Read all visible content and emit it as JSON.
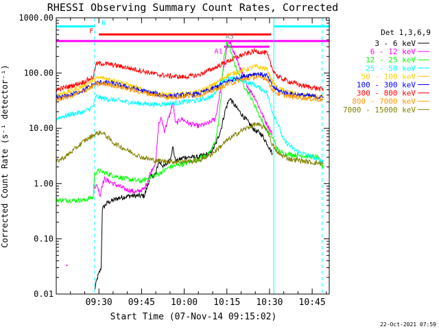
{
  "chart_data": {
    "type": "line",
    "title": "RHESSI Observing Summary Count Rates, Corrected",
    "xlabel": "Start Time (07-Nov-14 09:15:02)",
    "ylabel": "Corrected Count Rate (s⁻¹ detector⁻¹)",
    "x_unit": "minutes after 09:15",
    "xlim": [
      0,
      96
    ],
    "ylim": [
      0.01,
      1000
    ],
    "yscale": "log",
    "x_ticks": [
      {
        "value": 15,
        "label": "09:30"
      },
      {
        "value": 30,
        "label": "09:45"
      },
      {
        "value": 45,
        "label": "10:00"
      },
      {
        "value": 60,
        "label": "10:15"
      },
      {
        "value": 75,
        "label": "10:30"
      },
      {
        "value": 90,
        "label": "10:45"
      }
    ],
    "y_ticks": [
      {
        "value": 1000,
        "label": "1000.00"
      },
      {
        "value": 100,
        "label": "100.00"
      },
      {
        "value": 10,
        "label": "10.00"
      },
      {
        "value": 1,
        "label": "1.00"
      },
      {
        "value": 0.1,
        "label": "0.10"
      },
      {
        "value": 0.01,
        "label": "0.01"
      }
    ],
    "legend_title": "Det 1,3,6,9",
    "series": [
      {
        "name": "3 - 6 keV",
        "color": "#000000",
        "points": [
          [
            13.5,
            0.012
          ],
          [
            14.5,
            0.02
          ],
          [
            15.8,
            0.03
          ],
          [
            16.2,
            0.35
          ],
          [
            18,
            0.45
          ],
          [
            22,
            0.55
          ],
          [
            26,
            0.6
          ],
          [
            31,
            0.6
          ],
          [
            33,
            1.3
          ],
          [
            35,
            1.5
          ],
          [
            36,
            2.5
          ],
          [
            38,
            2.0
          ],
          [
            40,
            2.8
          ],
          [
            41,
            4.5
          ],
          [
            42,
            2.5
          ],
          [
            45,
            3
          ],
          [
            50,
            3
          ],
          [
            54,
            3.5
          ],
          [
            56,
            5
          ],
          [
            58,
            10
          ],
          [
            59.5,
            22
          ],
          [
            61,
            35
          ],
          [
            63,
            25
          ],
          [
            66,
            16
          ],
          [
            68,
            12
          ],
          [
            70,
            9
          ],
          [
            72,
            8
          ],
          [
            74,
            5.5
          ],
          [
            76,
            3.5
          ]
        ]
      },
      {
        "name": "6 - 12 keV",
        "color": "#ff00ff",
        "points": [
          [
            13,
            0.9
          ],
          [
            14.5,
            0.9
          ],
          [
            15.5,
            0.6
          ],
          [
            16,
            0.9
          ],
          [
            17,
            1.2
          ],
          [
            20,
            1.0
          ],
          [
            24,
            0.8
          ],
          [
            28,
            0.7
          ],
          [
            31,
            0.8
          ],
          [
            33,
            1.5
          ],
          [
            35,
            2.5
          ],
          [
            36,
            12
          ],
          [
            37,
            15
          ],
          [
            38,
            9
          ],
          [
            40,
            18
          ],
          [
            41,
            30
          ],
          [
            42,
            12
          ],
          [
            44,
            15
          ],
          [
            47,
            12
          ],
          [
            50,
            11
          ],
          [
            53,
            12
          ],
          [
            56,
            15
          ],
          [
            58,
            60
          ],
          [
            60,
            300
          ],
          [
            61,
            350
          ],
          [
            62,
            280
          ],
          [
            64,
            150
          ],
          [
            66,
            80
          ],
          [
            68,
            50
          ],
          [
            70,
            35
          ],
          [
            72,
            20
          ],
          [
            74,
            12
          ],
          [
            76,
            8
          ]
        ]
      },
      {
        "name": "12 - 25 keV",
        "color": "#00ff00",
        "points": [
          [
            0,
            0.5
          ],
          [
            10,
            0.5
          ],
          [
            12,
            0.55
          ],
          [
            13,
            0.55
          ],
          [
            13.5,
            1.5
          ],
          [
            15,
            1.7
          ],
          [
            20,
            1.4
          ],
          [
            25,
            1.2
          ],
          [
            30,
            1.1
          ],
          [
            33,
            1.3
          ],
          [
            36,
            1.5
          ],
          [
            40,
            2
          ],
          [
            45,
            2.3
          ],
          [
            50,
            2.8
          ],
          [
            54,
            3.5
          ],
          [
            56,
            6
          ],
          [
            57,
            12
          ],
          [
            58,
            40
          ],
          [
            59,
            200
          ],
          [
            60,
            350
          ],
          [
            61,
            300
          ],
          [
            62,
            180
          ],
          [
            64,
            100
          ],
          [
            66,
            60
          ],
          [
            68,
            40
          ],
          [
            70,
            25
          ],
          [
            72,
            15
          ],
          [
            74,
            9
          ],
          [
            76,
            7
          ],
          [
            78,
            4
          ],
          [
            80,
            3.5
          ],
          [
            86,
            3.2
          ],
          [
            92,
            3.0
          ],
          [
            93,
            2.2
          ],
          [
            94,
            2.0
          ]
        ]
      },
      {
        "name": "25 - 50 keV",
        "color": "#00ffff",
        "points": [
          [
            0,
            15
          ],
          [
            5,
            18
          ],
          [
            10,
            20
          ],
          [
            13,
            25
          ],
          [
            14,
            38
          ],
          [
            16,
            35
          ],
          [
            20,
            33
          ],
          [
            25,
            30
          ],
          [
            30,
            28
          ],
          [
            35,
            27
          ],
          [
            40,
            28
          ],
          [
            45,
            30
          ],
          [
            50,
            32
          ],
          [
            55,
            38
          ],
          [
            58,
            70
          ],
          [
            60,
            80
          ],
          [
            65,
            75
          ],
          [
            70,
            60
          ],
          [
            74,
            45
          ],
          [
            76,
            20
          ],
          [
            78,
            12
          ],
          [
            80,
            6
          ],
          [
            84,
            4
          ],
          [
            90,
            3
          ],
          [
            94,
            2.5
          ]
        ]
      },
      {
        "name": "50 - 100 keV",
        "color": "#ffcc00",
        "points": [
          [
            0,
            40
          ],
          [
            5,
            47
          ],
          [
            10,
            60
          ],
          [
            14,
            80
          ],
          [
            16,
            82
          ],
          [
            20,
            75
          ],
          [
            25,
            62
          ],
          [
            30,
            50
          ],
          [
            35,
            42
          ],
          [
            40,
            40
          ],
          [
            45,
            42
          ],
          [
            50,
            45
          ],
          [
            55,
            60
          ],
          [
            60,
            90
          ],
          [
            65,
            110
          ],
          [
            70,
            130
          ],
          [
            74,
            120
          ],
          [
            76,
            70
          ],
          [
            78,
            52
          ],
          [
            82,
            45
          ],
          [
            86,
            40
          ],
          [
            90,
            38
          ],
          [
            94,
            36
          ]
        ]
      },
      {
        "name": "100 - 300 keV",
        "color": "#0000ff",
        "points": [
          [
            0,
            35
          ],
          [
            5,
            40
          ],
          [
            10,
            50
          ],
          [
            14,
            66
          ],
          [
            16,
            68
          ],
          [
            20,
            65
          ],
          [
            25,
            56
          ],
          [
            30,
            48
          ],
          [
            35,
            42
          ],
          [
            40,
            38
          ],
          [
            45,
            40
          ],
          [
            50,
            42
          ],
          [
            55,
            52
          ],
          [
            60,
            70
          ],
          [
            65,
            85
          ],
          [
            70,
            98
          ],
          [
            74,
            90
          ],
          [
            76,
            58
          ],
          [
            78,
            48
          ],
          [
            82,
            42
          ],
          [
            86,
            40
          ],
          [
            90,
            38
          ],
          [
            94,
            36
          ]
        ]
      },
      {
        "name": "300 - 800 keV",
        "color": "#ff0000",
        "points": [
          [
            0,
            50
          ],
          [
            5,
            58
          ],
          [
            10,
            70
          ],
          [
            13,
            85
          ],
          [
            14,
            145
          ],
          [
            16,
            150
          ],
          [
            20,
            140
          ],
          [
            25,
            125
          ],
          [
            30,
            110
          ],
          [
            35,
            95
          ],
          [
            40,
            88
          ],
          [
            45,
            85
          ],
          [
            50,
            92
          ],
          [
            55,
            120
          ],
          [
            60,
            160
          ],
          [
            65,
            210
          ],
          [
            70,
            250
          ],
          [
            74,
            230
          ],
          [
            76,
            120
          ],
          [
            78,
            85
          ],
          [
            82,
            70
          ],
          [
            86,
            60
          ],
          [
            90,
            55
          ],
          [
            94,
            50
          ]
        ]
      },
      {
        "name": "800 - 7000 keV",
        "color": "#ff9900",
        "points": [
          [
            0,
            33
          ],
          [
            5,
            38
          ],
          [
            10,
            48
          ],
          [
            14,
            62
          ],
          [
            16,
            64
          ],
          [
            20,
            60
          ],
          [
            25,
            52
          ],
          [
            30,
            45
          ],
          [
            35,
            40
          ],
          [
            40,
            36
          ],
          [
            45,
            38
          ],
          [
            50,
            40
          ],
          [
            55,
            48
          ],
          [
            60,
            62
          ],
          [
            65,
            75
          ],
          [
            70,
            85
          ],
          [
            74,
            80
          ],
          [
            76,
            50
          ],
          [
            78,
            42
          ],
          [
            82,
            38
          ],
          [
            86,
            36
          ],
          [
            90,
            34
          ],
          [
            94,
            33
          ]
        ]
      },
      {
        "name": "7000 - 15000 keV",
        "color": "#808000",
        "points": [
          [
            0,
            2.5
          ],
          [
            3,
            3
          ],
          [
            6,
            4
          ],
          [
            10,
            6
          ],
          [
            14,
            8
          ],
          [
            16,
            8.5
          ],
          [
            18,
            7
          ],
          [
            20,
            5.5
          ],
          [
            25,
            4
          ],
          [
            30,
            3
          ],
          [
            35,
            2.6
          ],
          [
            40,
            2.5
          ],
          [
            45,
            2.5
          ],
          [
            50,
            2.6
          ],
          [
            55,
            3.5
          ],
          [
            60,
            6
          ],
          [
            65,
            9
          ],
          [
            70,
            12
          ],
          [
            74,
            10
          ],
          [
            76,
            5
          ],
          [
            78,
            3.5
          ],
          [
            82,
            2.8
          ],
          [
            86,
            2.6
          ],
          [
            90,
            2.4
          ],
          [
            94,
            2.3
          ]
        ]
      }
    ],
    "vertical_lines": [
      {
        "x": 13.5,
        "style": "dashed",
        "color": "#00ffff"
      },
      {
        "x": 76.5,
        "style": "solid",
        "color": "#00ffff"
      },
      {
        "x": 93.5,
        "style": "dashed",
        "color": "#00ffff"
      }
    ],
    "flag_bars": [
      {
        "label": "N",
        "color": "#00ffff",
        "y": 700,
        "segments": [
          [
            0,
            13.5
          ],
          [
            76.5,
            96
          ]
        ]
      },
      {
        "label": "F",
        "color": "#ff0000",
        "y": 500,
        "segments": [
          [
            15,
            75.5
          ]
        ]
      },
      {
        "label": "",
        "color": "#ff00ff",
        "y": 380,
        "segments": [
          [
            0,
            96
          ]
        ]
      },
      {
        "label": "A1",
        "color": "#ff00ff",
        "y": 300,
        "segments": [
          [
            59,
            75
          ]
        ]
      }
    ],
    "annotations": [
      {
        "label": "A3",
        "x": 61,
        "y": 420,
        "color": "#808080"
      }
    ],
    "stray_points": [
      {
        "x": 3.5,
        "y": 0.034,
        "color": "#ff00ff"
      },
      {
        "x": 70,
        "y": 400,
        "color": "#ff00ff"
      }
    ]
  },
  "timestamp": "22-Oct-2021 07:59"
}
